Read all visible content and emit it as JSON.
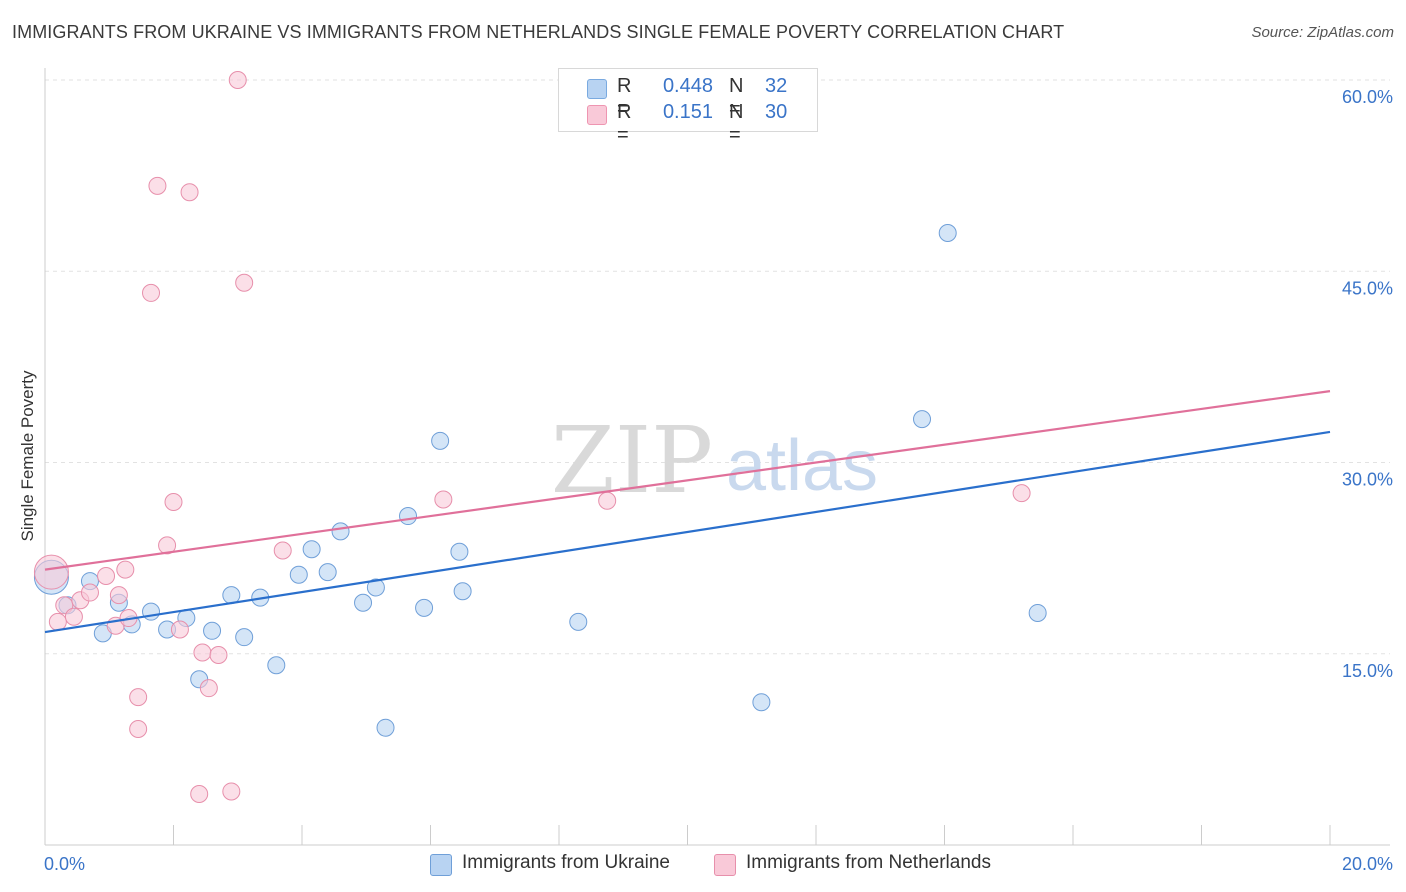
{
  "title": "IMMIGRANTS FROM UKRAINE VS IMMIGRANTS FROM NETHERLANDS SINGLE FEMALE POVERTY CORRELATION CHART",
  "source": "Source: ZipAtlas.com",
  "watermark": {
    "zip": "ZIP",
    "atlas": "atlas"
  },
  "legend_top": [
    {
      "r_label": "R =",
      "r_value": "0.448",
      "n_label": "N =",
      "n_value": "32",
      "color": "#b8d3f2",
      "border": "#7aaae0"
    },
    {
      "r_label": "R =",
      "r_value": "0.151",
      "n_label": "N =",
      "n_value": "30",
      "color": "#f9c9d8",
      "border": "#ee95b1"
    }
  ],
  "legend_bottom": [
    {
      "label": "Immigrants from Ukraine",
      "color": "#b8d3f2",
      "border": "#6f9fd8"
    },
    {
      "label": "Immigrants from Netherlands",
      "color": "#f9c9d8",
      "border": "#e78fab"
    }
  ],
  "chart_data": {
    "type": "scatter",
    "title": "IMMIGRANTS FROM UKRAINE VS IMMIGRANTS FROM NETHERLANDS SINGLE FEMALE POVERTY CORRELATION CHART",
    "xlabel": "",
    "ylabel": "Single Female Poverty",
    "xlim": [
      0,
      20
    ],
    "ylim": [
      0,
      60
    ],
    "x_tick_labels": [
      {
        "value": 0,
        "label": "0.0%"
      },
      {
        "value": 20,
        "label": "20.0%"
      }
    ],
    "y_tick_labels": [
      {
        "value": 15,
        "label": "15.0%"
      },
      {
        "value": 30,
        "label": "30.0%"
      },
      {
        "value": 45,
        "label": "45.0%"
      },
      {
        "value": 60,
        "label": "60.0%"
      }
    ],
    "grid": true,
    "series": [
      {
        "name": "Immigrants from Ukraine",
        "color": "#b8d3f2",
        "stroke": "#6f9fd8",
        "line_color": "#2a6fcc",
        "trend": {
          "x0": 0,
          "y0": 16.7,
          "x1": 20,
          "y1": 32.4
        },
        "points": [
          {
            "x": 0.1,
            "y": 21.0,
            "big": true
          },
          {
            "x": 0.35,
            "y": 18.8
          },
          {
            "x": 0.7,
            "y": 20.7
          },
          {
            "x": 0.9,
            "y": 16.6
          },
          {
            "x": 1.15,
            "y": 19.0
          },
          {
            "x": 1.35,
            "y": 17.3
          },
          {
            "x": 1.65,
            "y": 18.3
          },
          {
            "x": 1.9,
            "y": 16.9
          },
          {
            "x": 2.2,
            "y": 17.8
          },
          {
            "x": 2.4,
            "y": 13.0
          },
          {
            "x": 2.6,
            "y": 16.8
          },
          {
            "x": 2.9,
            "y": 19.6
          },
          {
            "x": 3.1,
            "y": 16.3
          },
          {
            "x": 3.35,
            "y": 19.4
          },
          {
            "x": 3.6,
            "y": 14.1
          },
          {
            "x": 3.95,
            "y": 21.2
          },
          {
            "x": 4.15,
            "y": 23.2
          },
          {
            "x": 4.4,
            "y": 21.4
          },
          {
            "x": 4.6,
            "y": 24.6
          },
          {
            "x": 4.95,
            "y": 19.0
          },
          {
            "x": 5.15,
            "y": 20.2
          },
          {
            "x": 5.3,
            "y": 9.2
          },
          {
            "x": 5.65,
            "y": 25.8
          },
          {
            "x": 5.9,
            "y": 18.6
          },
          {
            "x": 6.15,
            "y": 31.7
          },
          {
            "x": 6.45,
            "y": 23.0
          },
          {
            "x": 6.5,
            "y": 19.9
          },
          {
            "x": 8.3,
            "y": 17.5
          },
          {
            "x": 11.15,
            "y": 11.2
          },
          {
            "x": 13.65,
            "y": 33.4
          },
          {
            "x": 14.05,
            "y": 48.0
          },
          {
            "x": 15.45,
            "y": 18.2
          }
        ]
      },
      {
        "name": "Immigrants from Netherlands",
        "color": "#f9c9d8",
        "stroke": "#e78fab",
        "line_color": "#e0709a",
        "trend": {
          "x0": 0,
          "y0": 21.6,
          "x1": 20,
          "y1": 35.6
        },
        "points": [
          {
            "x": 0.1,
            "y": 21.4,
            "big": true
          },
          {
            "x": 0.2,
            "y": 17.5
          },
          {
            "x": 0.3,
            "y": 18.8
          },
          {
            "x": 0.45,
            "y": 17.9
          },
          {
            "x": 0.55,
            "y": 19.2
          },
          {
            "x": 0.7,
            "y": 19.8
          },
          {
            "x": 0.95,
            "y": 21.1
          },
          {
            "x": 1.1,
            "y": 17.2
          },
          {
            "x": 1.15,
            "y": 19.6
          },
          {
            "x": 1.25,
            "y": 21.6
          },
          {
            "x": 1.3,
            "y": 17.8
          },
          {
            "x": 1.45,
            "y": 11.6
          },
          {
            "x": 1.45,
            "y": 9.1
          },
          {
            "x": 1.65,
            "y": 43.3
          },
          {
            "x": 1.75,
            "y": 51.7
          },
          {
            "x": 1.9,
            "y": 23.5
          },
          {
            "x": 2.0,
            "y": 26.9
          },
          {
            "x": 2.1,
            "y": 16.9
          },
          {
            "x": 2.25,
            "y": 51.2
          },
          {
            "x": 2.4,
            "y": 4.0
          },
          {
            "x": 2.45,
            "y": 15.1
          },
          {
            "x": 2.55,
            "y": 12.3
          },
          {
            "x": 2.7,
            "y": 14.9
          },
          {
            "x": 2.9,
            "y": 4.2
          },
          {
            "x": 3.0,
            "y": 60.0
          },
          {
            "x": 3.1,
            "y": 44.1
          },
          {
            "x": 3.7,
            "y": 23.1
          },
          {
            "x": 6.2,
            "y": 27.1
          },
          {
            "x": 8.75,
            "y": 27.0
          },
          {
            "x": 15.2,
            "y": 27.6
          }
        ]
      }
    ]
  }
}
